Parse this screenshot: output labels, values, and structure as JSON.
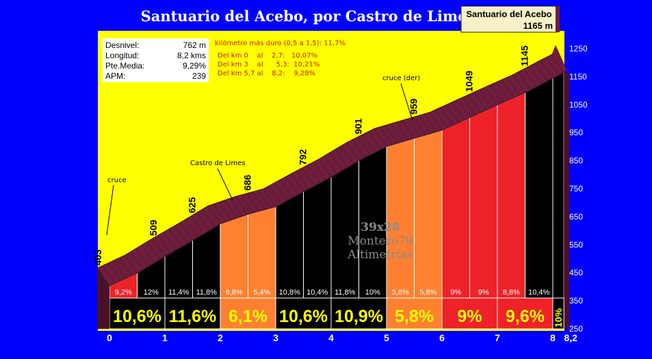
{
  "title": "Santuario del Acebo, por Castro de Limes",
  "summit": {
    "name": "Santuario del Acebo",
    "altitude": "1165 m"
  },
  "stats": [
    {
      "label": "Desnivel:",
      "value": "762 m"
    },
    {
      "label": "Longitud:",
      "value": "8,2 kms"
    },
    {
      "label": "Pte.Media:",
      "value": "9,29%"
    },
    {
      "label": "APM:",
      "value": "239"
    }
  ],
  "hardest_km": "kilómetro más duro (0,5 a 1,5):  11,7%",
  "sections": [
    "Del km 0    al    2,7:   10,07%",
    "Del km 3    al      5,3:  10,21%",
    "Del km 5,7 al    8,2:    9,28%"
  ],
  "watermark": {
    "line1": "39x28",
    "line2": "Montero79",
    "line3": "Altimetrías"
  },
  "colors": {
    "background": "#0000ff",
    "plot": "#ffff00",
    "crust": "#6e1e3c",
    "black": "#000000",
    "orange": "#ff8030",
    "red": "#ee2228"
  },
  "chart_data": {
    "type": "area",
    "xlabel": "",
    "ylabel": "",
    "xlim": [
      0,
      8.2
    ],
    "ylim": [
      250,
      1300
    ],
    "y_ticks": [
      "250",
      "350",
      "450",
      "550",
      "650",
      "750",
      "850",
      "950",
      "1050",
      "1150",
      "1250"
    ],
    "x_ticks": [
      "0",
      "1",
      "2",
      "3",
      "4",
      "5",
      "6",
      "7",
      "8",
      "8,2"
    ],
    "x_tick_values": [
      0,
      1,
      2,
      3,
      4,
      5,
      6,
      7,
      8,
      8.2
    ],
    "profile": [
      {
        "x": 0,
        "y": 403
      },
      {
        "x": 0.5,
        "y": 449
      },
      {
        "x": 1,
        "y": 509
      },
      {
        "x": 1.5,
        "y": 566
      },
      {
        "x": 2,
        "y": 625
      },
      {
        "x": 2.5,
        "y": 659
      },
      {
        "x": 3,
        "y": 686
      },
      {
        "x": 3.5,
        "y": 740
      },
      {
        "x": 4,
        "y": 792
      },
      {
        "x": 4.5,
        "y": 851
      },
      {
        "x": 5,
        "y": 901
      },
      {
        "x": 5.5,
        "y": 930
      },
      {
        "x": 6,
        "y": 959
      },
      {
        "x": 6.5,
        "y": 1004
      },
      {
        "x": 7,
        "y": 1049
      },
      {
        "x": 7.5,
        "y": 1093
      },
      {
        "x": 8,
        "y": 1145
      },
      {
        "x": 8.2,
        "y": 1165
      }
    ],
    "segment_pct": [
      "9,2%",
      "12%",
      "11,4%",
      "11,8%",
      "6,8%",
      "5,4%",
      "10,8%",
      "10,4%",
      "11,8%",
      "10%",
      "5,8%",
      "5,8%",
      "9%",
      "9%",
      "8,8%",
      "10,4%"
    ],
    "segment_color": [
      "red",
      "black",
      "black",
      "black",
      "orange",
      "orange",
      "black",
      "black",
      "black",
      "black",
      "orange",
      "orange",
      "red",
      "red",
      "red",
      "black"
    ],
    "km_pct": [
      "10,6%",
      "11,6%",
      "6,1%",
      "10,6%",
      "10,9%",
      "5,8%",
      "9%",
      "9,6%"
    ],
    "km_color": [
      "black",
      "black",
      "orange",
      "black",
      "black",
      "orange",
      "red",
      "red"
    ],
    "last_pct": "10%",
    "altitude_labels": [
      {
        "x": 0,
        "text": "403"
      },
      {
        "x": 1,
        "text": "509"
      },
      {
        "x": 1.7,
        "text": "625"
      },
      {
        "x": 2.7,
        "text": "686"
      },
      {
        "x": 3.7,
        "text": "792"
      },
      {
        "x": 4.7,
        "text": "901"
      },
      {
        "x": 5.7,
        "text": "959"
      },
      {
        "x": 6.7,
        "text": "1049"
      },
      {
        "x": 7.7,
        "text": "1145"
      }
    ],
    "annotations": [
      {
        "text": "cruce",
        "x": 0.08
      },
      {
        "text": "Castro de Limes",
        "x": 2.05
      },
      {
        "text": "cruce (der)",
        "x": 5.45
      }
    ]
  }
}
